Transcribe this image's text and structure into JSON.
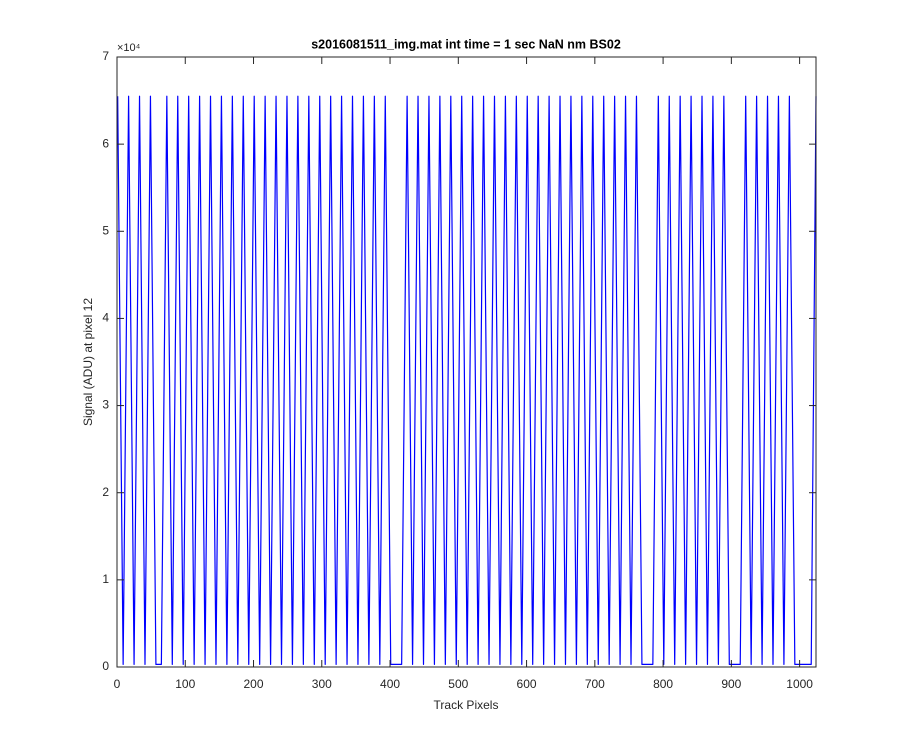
{
  "chart_data": {
    "type": "line",
    "title": "s2016081511_img.mat int time = 1 sec  NaN nm BS02",
    "x_label": "Track Pixels",
    "y_label": "Signal (ADU) at pixel 12",
    "y_multiplier": "×10⁴",
    "color": "#0000ff",
    "xlim": [
      0,
      1024
    ],
    "ylim": [
      0,
      7
    ],
    "xticks": [
      0,
      100,
      200,
      300,
      400,
      500,
      600,
      700,
      800,
      900,
      1000
    ],
    "yticks": [
      0,
      1,
      2,
      3,
      4,
      5,
      6,
      7
    ],
    "grid": false,
    "x": [
      1,
      9,
      17,
      25,
      33,
      41,
      49,
      57,
      65,
      73,
      81,
      89,
      97,
      105,
      113,
      121,
      129,
      137,
      145,
      153,
      161,
      169,
      177,
      185,
      193,
      201,
      209,
      217,
      225,
      233,
      241,
      249,
      257,
      265,
      273,
      281,
      289,
      297,
      305,
      313,
      321,
      329,
      337,
      345,
      353,
      361,
      369,
      377,
      385,
      393,
      401,
      409,
      417,
      425,
      433,
      441,
      449,
      457,
      465,
      473,
      481,
      489,
      497,
      505,
      513,
      521,
      529,
      537,
      545,
      553,
      561,
      569,
      577,
      585,
      593,
      601,
      609,
      617,
      625,
      633,
      641,
      649,
      657,
      665,
      673,
      681,
      689,
      697,
      705,
      713,
      721,
      729,
      737,
      745,
      753,
      761,
      769,
      777,
      785,
      793,
      801,
      809,
      817,
      825,
      833,
      841,
      849,
      857,
      865,
      873,
      881,
      889,
      897,
      905,
      913,
      921,
      929,
      937,
      945,
      953,
      961,
      969,
      977,
      985,
      993,
      1001,
      1009,
      1017,
      1024
    ],
    "values": [
      6.55,
      0.03,
      6.55,
      0.03,
      6.55,
      0.03,
      6.55,
      0.03,
      0.03,
      6.55,
      0.03,
      6.55,
      0.03,
      6.55,
      0.03,
      6.55,
      0.03,
      6.55,
      0.03,
      6.55,
      0.03,
      6.55,
      0.03,
      6.55,
      0.03,
      6.55,
      0.03,
      6.55,
      0.03,
      6.55,
      0.03,
      6.55,
      0.03,
      6.55,
      0.03,
      6.55,
      0.03,
      6.55,
      0.03,
      6.55,
      0.03,
      6.55,
      0.03,
      6.55,
      0.03,
      6.55,
      0.03,
      6.55,
      0.03,
      6.55,
      0.03,
      0.03,
      0.03,
      6.55,
      0.03,
      6.55,
      0.03,
      6.55,
      0.03,
      6.55,
      0.03,
      6.55,
      0.03,
      6.55,
      0.03,
      6.55,
      0.03,
      6.55,
      0.03,
      6.55,
      0.03,
      6.55,
      0.03,
      6.55,
      0.03,
      6.55,
      0.03,
      6.55,
      0.03,
      6.55,
      0.03,
      6.55,
      0.03,
      6.55,
      0.03,
      6.55,
      0.03,
      6.55,
      0.03,
      6.55,
      0.03,
      6.55,
      0.03,
      6.55,
      0.03,
      6.55,
      0.03,
      0.03,
      0.03,
      6.55,
      0.03,
      6.55,
      0.03,
      6.55,
      0.03,
      6.55,
      0.03,
      6.55,
      0.03,
      6.55,
      0.03,
      6.55,
      0.03,
      0.03,
      0.03,
      6.55,
      0.03,
      6.55,
      0.03,
      6.55,
      0.03,
      6.55,
      0.03,
      6.55,
      0.03,
      0.03,
      0.03,
      0.03,
      6.55
    ]
  }
}
